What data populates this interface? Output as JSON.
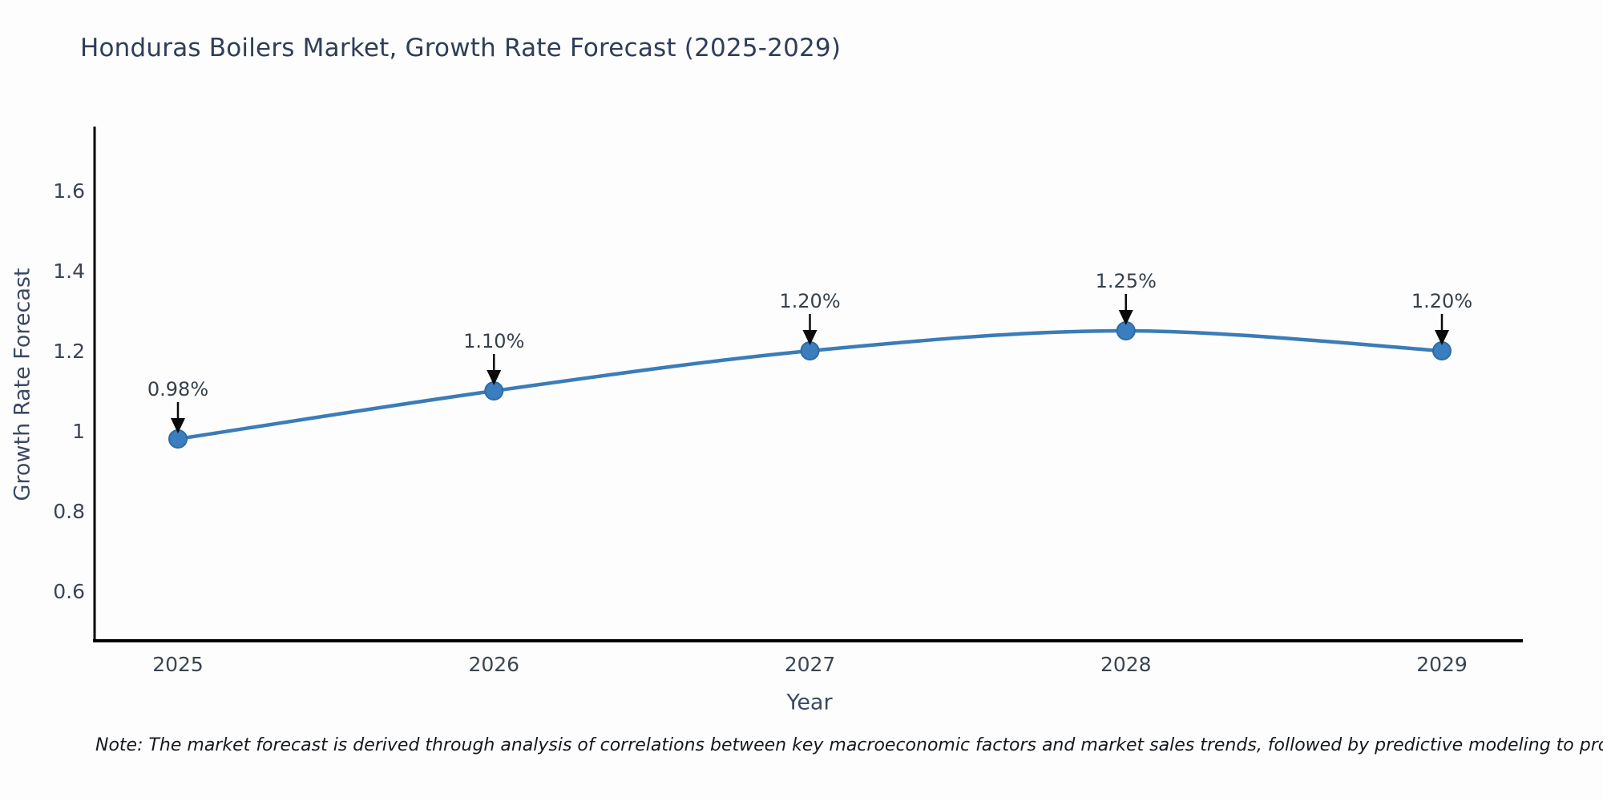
{
  "title": "Honduras Boilers Market, Growth Rate Forecast (2025-2029)",
  "note": "Note: The market forecast is derived through analysis of correlations between key macroeconomic factors and market sales trends, followed by predictive modeling to project future sales",
  "chart_data": {
    "type": "line",
    "title": "Honduras Boilers Market, Growth Rate Forecast (2025-2029)",
    "x": [
      "2025",
      "2026",
      "2027",
      "2028",
      "2029"
    ],
    "series": [
      {
        "name": "Growth Rate Forecast",
        "values": [
          0.98,
          1.1,
          1.2,
          1.25,
          1.2
        ]
      }
    ],
    "point_labels": [
      "0.98%",
      "1.10%",
      "1.20%",
      "1.25%",
      "1.20%"
    ],
    "xlabel": "Year",
    "ylabel": "Growth Rate Forecast",
    "yticks": [
      "1.6",
      "1.4",
      "1.2",
      "1",
      "0.8",
      "0.6"
    ],
    "ytick_values": [
      1.6,
      1.4,
      1.2,
      1.0,
      0.8,
      0.6
    ],
    "ylim": [
      0.47,
      1.76
    ],
    "grid": false,
    "legend_position": "none",
    "line_style": "smooth-spline",
    "annotation_style": "down-arrow-to-point"
  },
  "colors": {
    "background": "#fdfdfd",
    "line": "#3b7cb8",
    "marker_fill": "#3a7ebf",
    "marker_edge": "#2f6ba3",
    "arrow": "#0a0a0a",
    "axis": "#000000",
    "title_text": "#2e3d59",
    "tick_text": "#3b4552",
    "point_label_text": "#36404a",
    "axis_label_text": "#3b4a63",
    "note_text": "#15191e"
  }
}
